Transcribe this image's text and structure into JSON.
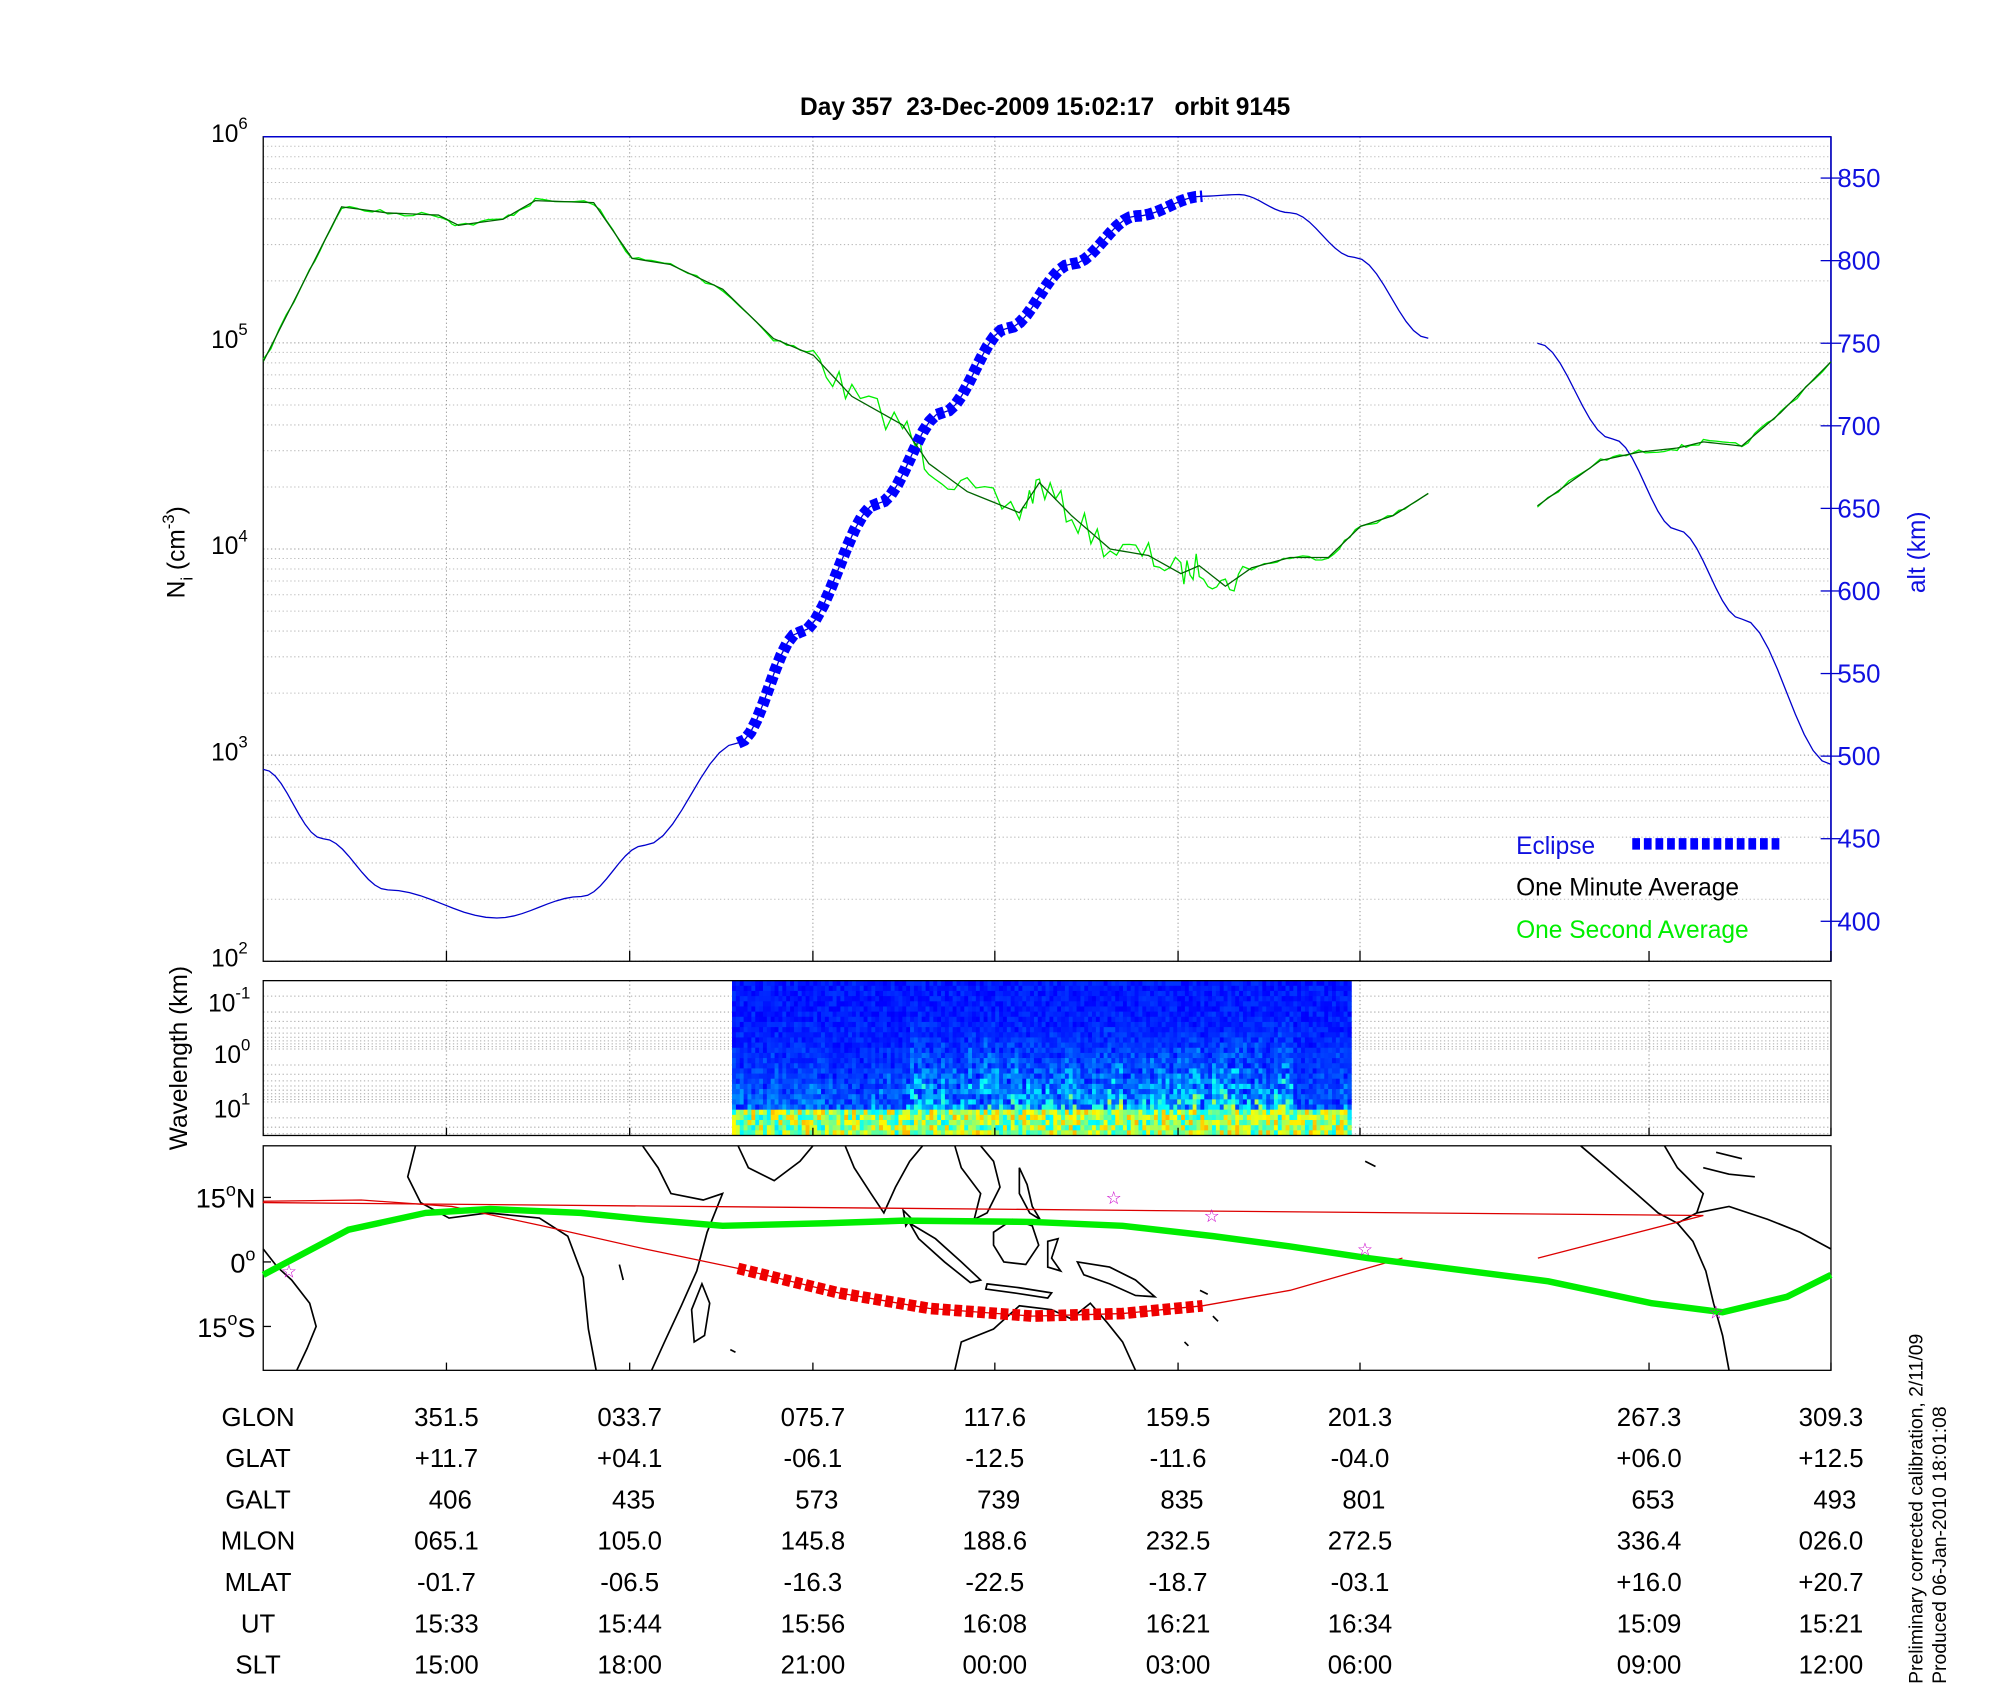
{
  "chart_data": [
    {
      "type": "line",
      "title": "Day 357  23-Dec-2009 15:02:17   orbit 9145",
      "xlabel": "",
      "x_units": "minutes elapsed",
      "xlim": [
        0,
        102
      ],
      "ylabel_main": "N",
      "ylabel_sub": "i",
      "ylabel_unit": " (cm",
      "ylabel_exp": "-3",
      "ylabel_close": ")",
      "ylim_log": [
        100,
        1000000
      ],
      "y_ticks": [
        {
          "base": "10",
          "exp": "2"
        },
        {
          "base": "10",
          "exp": "3"
        },
        {
          "base": "10",
          "exp": "4"
        },
        {
          "base": "10",
          "exp": "5"
        },
        {
          "base": "10",
          "exp": "6"
        }
      ],
      "y2label": "alt (km)",
      "y2lim": [
        378,
        877
      ],
      "y2_ticks": [
        "400",
        "450",
        "500",
        "550",
        "600",
        "650",
        "700",
        "750",
        "800",
        "850"
      ],
      "grid": true,
      "series": [
        {
          "name": "One Minute Average",
          "color": "#006400",
          "segments": [
            {
              "x": [
                0,
                3.0,
                5.1,
                8.1,
                11.4,
                12.7,
                15.6,
                17.7,
                21.5,
                24.0,
                26.5,
                29.9,
                33.2,
                35.8,
                38.3,
                41.6,
                43.3,
                45.8,
                49.2,
                50.5,
                52.6,
                55.1,
                57.6,
                59.7,
                60.9,
                62.6,
                64.3,
                66.8,
                69.3,
                71.4,
                73.5,
                75.8
              ],
              "y": [
                81000,
                224000,
                457000,
                427000,
                417000,
                372000,
                398000,
                490000,
                479000,
                257000,
                240000,
                182000,
                105000,
                87000,
                55000,
                40000,
                26000,
                19000,
                15000,
                21000,
                14500,
                10000,
                9300,
                7600,
                8300,
                6600,
                8100,
                9100,
                9100,
                12900,
                14500,
                18600
              ]
            },
            {
              "x": [
                82.9,
                87.0,
                89.5,
                92.0,
                93.7,
                96.2,
                98.7,
                102
              ],
              "y": [
                16200,
                26900,
                29500,
                30900,
                33100,
                31600,
                45700,
                81000
              ]
            }
          ]
        },
        {
          "name": "One Second Average",
          "color": "#00ee00",
          "derived_from": "One Minute Average"
        },
        {
          "name": "alt",
          "axis": "y2",
          "color": "#0000cc",
          "segments": [
            {
              "x": [
                0,
                3.9,
                8.1,
                15.2,
                20.7,
                24.8,
                30.9,
                34.9,
                40.0,
                44.2,
                48.4,
                52.6,
                56.8,
                61.1,
                63.5,
                66.8,
                71.0,
                75.8
              ],
              "y": [
                492,
                450,
                419,
                402,
                415,
                446,
                508,
                575,
                653,
                708,
                759,
                798,
                827,
                839,
                840,
                829,
                802,
                753
              ]
            },
            {
              "x": [
                82.9,
                87.8,
                92.0,
                96.2,
                102
              ],
              "y": [
                750,
                692,
                637,
                583,
                495
              ]
            }
          ]
        },
        {
          "name": "Eclipse",
          "axis": "y2",
          "color": "#0000ff",
          "style": "thick-dashed",
          "x": [
            30.9,
            34.9,
            40.0,
            44.2,
            48.4,
            52.6,
            56.8,
            61.1
          ],
          "y": [
            508,
            575,
            653,
            708,
            759,
            798,
            827,
            839
          ]
        }
      ],
      "legend": {
        "placement": "bottom-right",
        "entries": [
          {
            "label": "Eclipse",
            "color": "#1010e0"
          },
          {
            "label": "One Minute Average",
            "color": "#000000"
          },
          {
            "label": "One Second Average",
            "color": "#00ee00"
          }
        ]
      }
    },
    {
      "type": "heatmap",
      "ylabel": "Wavelength (km)",
      "y_ticks": [
        {
          "base": "10",
          "exp": "-1"
        },
        {
          "base": "10",
          "exp": "0"
        },
        {
          "base": "10",
          "exp": "1"
        }
      ],
      "x_extent_minutes": [
        30.5,
        70.6
      ],
      "colormap": "jet"
    },
    {
      "type": "map",
      "lat_ticks": [
        {
          "deg": "15",
          "sym": "o",
          "hem": "N"
        },
        {
          "deg": "0",
          "sym": "o",
          "hem": ""
        },
        {
          "deg": "15",
          "sym": "o",
          "hem": "S"
        }
      ],
      "lon_start": 309.5,
      "ground_track_red": {
        "color": "#dd0000",
        "segments": [
          {
            "lon": [
              309.5,
              332.0,
              352.8,
              13.5,
              37.2,
              58.5,
              81.6,
              102.4,
              126.1,
              146.8,
              165.2,
              185.3,
              211.1
            ],
            "lat": [
              14.1,
              14.4,
              12.9,
              8.4,
              3.0,
              -1.5,
              -7.2,
              -10.8,
              -12.6,
              -12.0,
              -10.2,
              -6.6,
              0.9
            ]
          },
          {
            "lon": [
              242.2,
              259.4,
              280.2,
              309.4
            ],
            "lat": [
              0.9,
              5.4,
              10.8,
              13.8
            ]
          }
        ]
      },
      "eclipse_track": {
        "color": "#ee0000",
        "lon": [
          58.5,
          81.6,
          102.4,
          126.1,
          146.8,
          165.2
        ],
        "lat": [
          -1.5,
          -7.2,
          -10.8,
          -12.6,
          -12.0,
          -10.2
        ]
      },
      "magnetic_equator_green": {
        "color": "#00ee00",
        "lon": [
          309.5,
          329.1,
          346.8,
          1.6,
          22.4,
          37.2,
          55.0,
          78.7,
          96.5,
          126.1,
          146.8,
          167.6,
          185.3,
          203.1,
          244.6,
          268.3,
          284.6,
          299.4,
          309.4
        ],
        "lat": [
          -3.0,
          7.5,
          11.4,
          12.3,
          11.4,
          9.9,
          8.4,
          9.0,
          9.6,
          9.3,
          8.4,
          6.0,
          3.6,
          0.9,
          -4.5,
          -9.6,
          -11.7,
          -8.1,
          -3.0
        ]
      },
      "stations": {
        "color": "#cc00cc",
        "symbol": "☆",
        "lon": [
          315.4,
          144.8,
          167.3,
          202.5,
          283.1
        ],
        "lat": [
          -2.1,
          15.0,
          10.8,
          3.0,
          -11.7
        ]
      }
    }
  ],
  "table": {
    "rows": [
      {
        "label": "GLON",
        "values": [
          "351.5",
          "033.7",
          "075.7",
          "117.6",
          "159.5",
          "201.3",
          "267.3",
          "309.3"
        ]
      },
      {
        "label": "GLAT",
        "values": [
          "+11.7",
          "+04.1",
          "-06.1",
          "-12.5",
          "-11.6",
          "-04.0",
          "+06.0",
          "+12.5"
        ]
      },
      {
        "label": "GALT",
        "values": [
          "406",
          "435",
          "573",
          "739",
          "835",
          "801",
          "653",
          "493"
        ]
      },
      {
        "label": "MLON",
        "values": [
          "065.1",
          "105.0",
          "145.8",
          "188.6",
          "232.5",
          "272.5",
          "336.4",
          "026.0"
        ]
      },
      {
        "label": "MLAT",
        "values": [
          "-01.7",
          "-06.5",
          "-16.3",
          "-22.5",
          "-18.7",
          "-03.1",
          "+16.0",
          "+20.7"
        ]
      },
      {
        "label": "UT",
        "values": [
          "15:33",
          "15:44",
          "15:56",
          "16:08",
          "16:21",
          "16:34",
          "15:09",
          "15:21"
        ]
      },
      {
        "label": "SLT",
        "values": [
          "15:00",
          "18:00",
          "21:00",
          "00:00",
          "03:00",
          "06:00",
          "09:00",
          "12:00"
        ]
      }
    ]
  },
  "footnote": {
    "line1": "Preliminary corrected calibration, 2/11/09",
    "line2": "Produced 06-Jan-2010 18:01:08"
  }
}
